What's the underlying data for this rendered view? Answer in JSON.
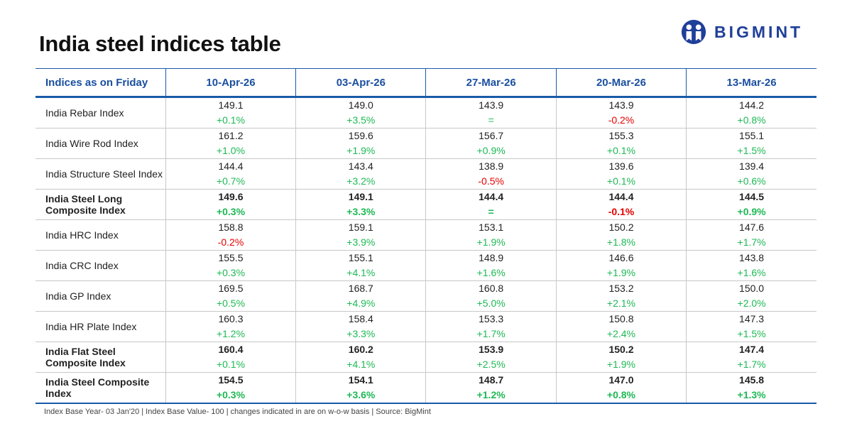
{
  "title": "India steel indices table",
  "logo": {
    "text": "BIGMINT"
  },
  "colors": {
    "accent": "#1a4fa0",
    "positive": "#1db954",
    "negative": "#e60000"
  },
  "table": {
    "header": "Indices as on Friday",
    "dates": [
      "10-Apr-26",
      "03-Apr-26",
      "27-Mar-26",
      "20-Mar-26",
      "13-Mar-26"
    ],
    "rows": [
      {
        "name": "India Rebar Index",
        "bold": false,
        "values": [
          "149.1",
          "149.0",
          "143.9",
          "143.9",
          "144.2"
        ],
        "changes": [
          "+0.1%",
          "+3.5%",
          "=",
          "-0.2%",
          "+0.8%"
        ],
        "bold_changes": false
      },
      {
        "name": "India Wire Rod Index",
        "bold": false,
        "values": [
          "161.2",
          "159.6",
          "156.7",
          "155.3",
          "155.1"
        ],
        "changes": [
          "+1.0%",
          "+1.9%",
          "+0.9%",
          "+0.1%",
          "+1.5%"
        ],
        "bold_changes": false
      },
      {
        "name": "India Structure Steel Index",
        "bold": false,
        "values": [
          "144.4",
          "143.4",
          "138.9",
          "139.6",
          "139.4"
        ],
        "changes": [
          "+0.7%",
          "+3.2%",
          "-0.5%",
          "+0.1%",
          "+0.6%"
        ],
        "bold_changes": false
      },
      {
        "name": "India Steel Long Composite Index",
        "bold": true,
        "values": [
          "149.6",
          "149.1",
          "144.4",
          "144.4",
          "144.5"
        ],
        "changes": [
          "+0.3%",
          "+3.3%",
          "=",
          "-0.1%",
          "+0.9%"
        ],
        "bold_changes": true
      },
      {
        "name": "India HRC Index",
        "bold": false,
        "values": [
          "158.8",
          "159.1",
          "153.1",
          "150.2",
          "147.6"
        ],
        "changes": [
          "-0.2%",
          "+3.9%",
          "+1.9%",
          "+1.8%",
          "+1.7%"
        ],
        "bold_changes": false
      },
      {
        "name": "India CRC Index",
        "bold": false,
        "values": [
          "155.5",
          "155.1",
          "148.9",
          "146.6",
          "143.8"
        ],
        "changes": [
          "+0.3%",
          "+4.1%",
          "+1.6%",
          "+1.9%",
          "+1.6%"
        ],
        "bold_changes": false
      },
      {
        "name": "India GP Index",
        "bold": false,
        "values": [
          "169.5",
          "168.7",
          "160.8",
          "153.2",
          "150.0"
        ],
        "changes": [
          "+0.5%",
          "+4.9%",
          "+5.0%",
          "+2.1%",
          "+2.0%"
        ],
        "bold_changes": false
      },
      {
        "name": "India HR Plate Index",
        "bold": false,
        "values": [
          "160.3",
          "158.4",
          "153.3",
          "150.8",
          "147.3"
        ],
        "changes": [
          "+1.2%",
          "+3.3%",
          "+1.7%",
          "+2.4%",
          "+1.5%"
        ],
        "bold_changes": false
      },
      {
        "name": "India Flat Steel Composite Index",
        "bold": true,
        "values": [
          "160.4",
          "160.2",
          "153.9",
          "150.2",
          "147.4"
        ],
        "changes": [
          "+0.1%",
          "+4.1%",
          "+2.5%",
          "+1.9%",
          "+1.7%"
        ],
        "bold_changes": false
      },
      {
        "name": "India Steel Composite Index",
        "bold": true,
        "values": [
          "154.5",
          "154.1",
          "148.7",
          "147.0",
          "145.8"
        ],
        "changes": [
          "+0.3%",
          "+3.6%",
          "+1.2%",
          "+0.8%",
          "+1.3%"
        ],
        "bold_changes": true
      }
    ]
  },
  "footer": "Index Base Year- 03 Jan'20 | Index Base Value- 100 | changes indicated in are on w-o-w basis | Source: BigMint"
}
